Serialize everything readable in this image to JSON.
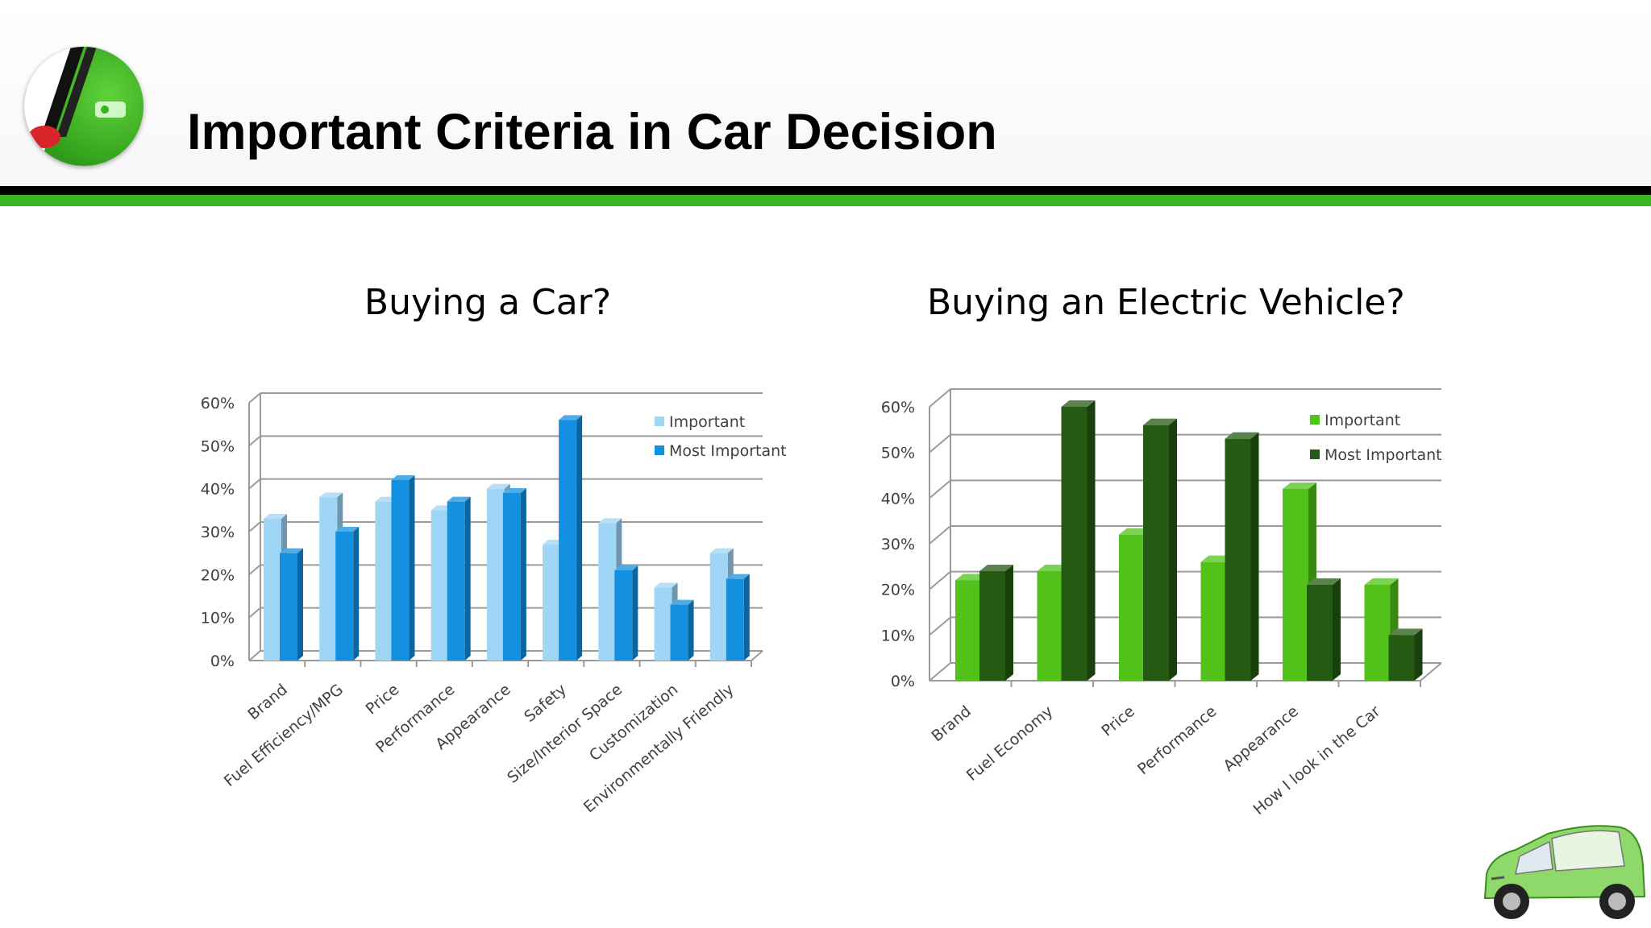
{
  "slide": {
    "title": "Important Criteria in Car Decision"
  },
  "colors": {
    "header_black": "#000000",
    "header_green": "#39b51e",
    "car_important": "#9fd6f6",
    "car_most_important": "#1390e0",
    "ev_important": "#52c21a",
    "ev_most_important": "#245a12"
  },
  "icons": {
    "logo": "ev-charging-car-logo",
    "car": "green-smart-car-illustration"
  },
  "chart_data": [
    {
      "type": "bar",
      "title": "Buying a Car?",
      "categories": [
        "Brand",
        "Fuel Efficiency/MPG",
        "Price",
        "Performance",
        "Appearance",
        "Safety",
        "Size/Interior Space",
        "Customization",
        "Environmentally Friendly"
      ],
      "series": [
        {
          "name": "Important",
          "values": [
            33,
            38,
            37,
            35,
            40,
            27,
            32,
            17,
            25
          ]
        },
        {
          "name": "Most Important",
          "values": [
            25,
            30,
            42,
            37,
            39,
            56,
            21,
            13,
            19
          ]
        }
      ],
      "yticks": [
        "0%",
        "10%",
        "20%",
        "30%",
        "40%",
        "50%",
        "60%"
      ],
      "ylim": [
        0,
        60
      ],
      "grid": true,
      "legend": "top-right",
      "style": "3d-clustered-column"
    },
    {
      "type": "bar",
      "title": "Buying an Electric Vehicle?",
      "categories": [
        "Brand",
        "Fuel Economy",
        "Price",
        "Performance",
        "Appearance",
        "How I look in the Car"
      ],
      "series": [
        {
          "name": "Important",
          "values": [
            22,
            24,
            32,
            26,
            42,
            21
          ]
        },
        {
          "name": "Most Important",
          "values": [
            24,
            60,
            56,
            53,
            21,
            10
          ]
        }
      ],
      "yticks": [
        "0%",
        "10%",
        "20%",
        "30%",
        "40%",
        "50%",
        "60%"
      ],
      "ylim": [
        0,
        60
      ],
      "grid": true,
      "legend": "top-right",
      "style": "3d-clustered-column"
    }
  ]
}
